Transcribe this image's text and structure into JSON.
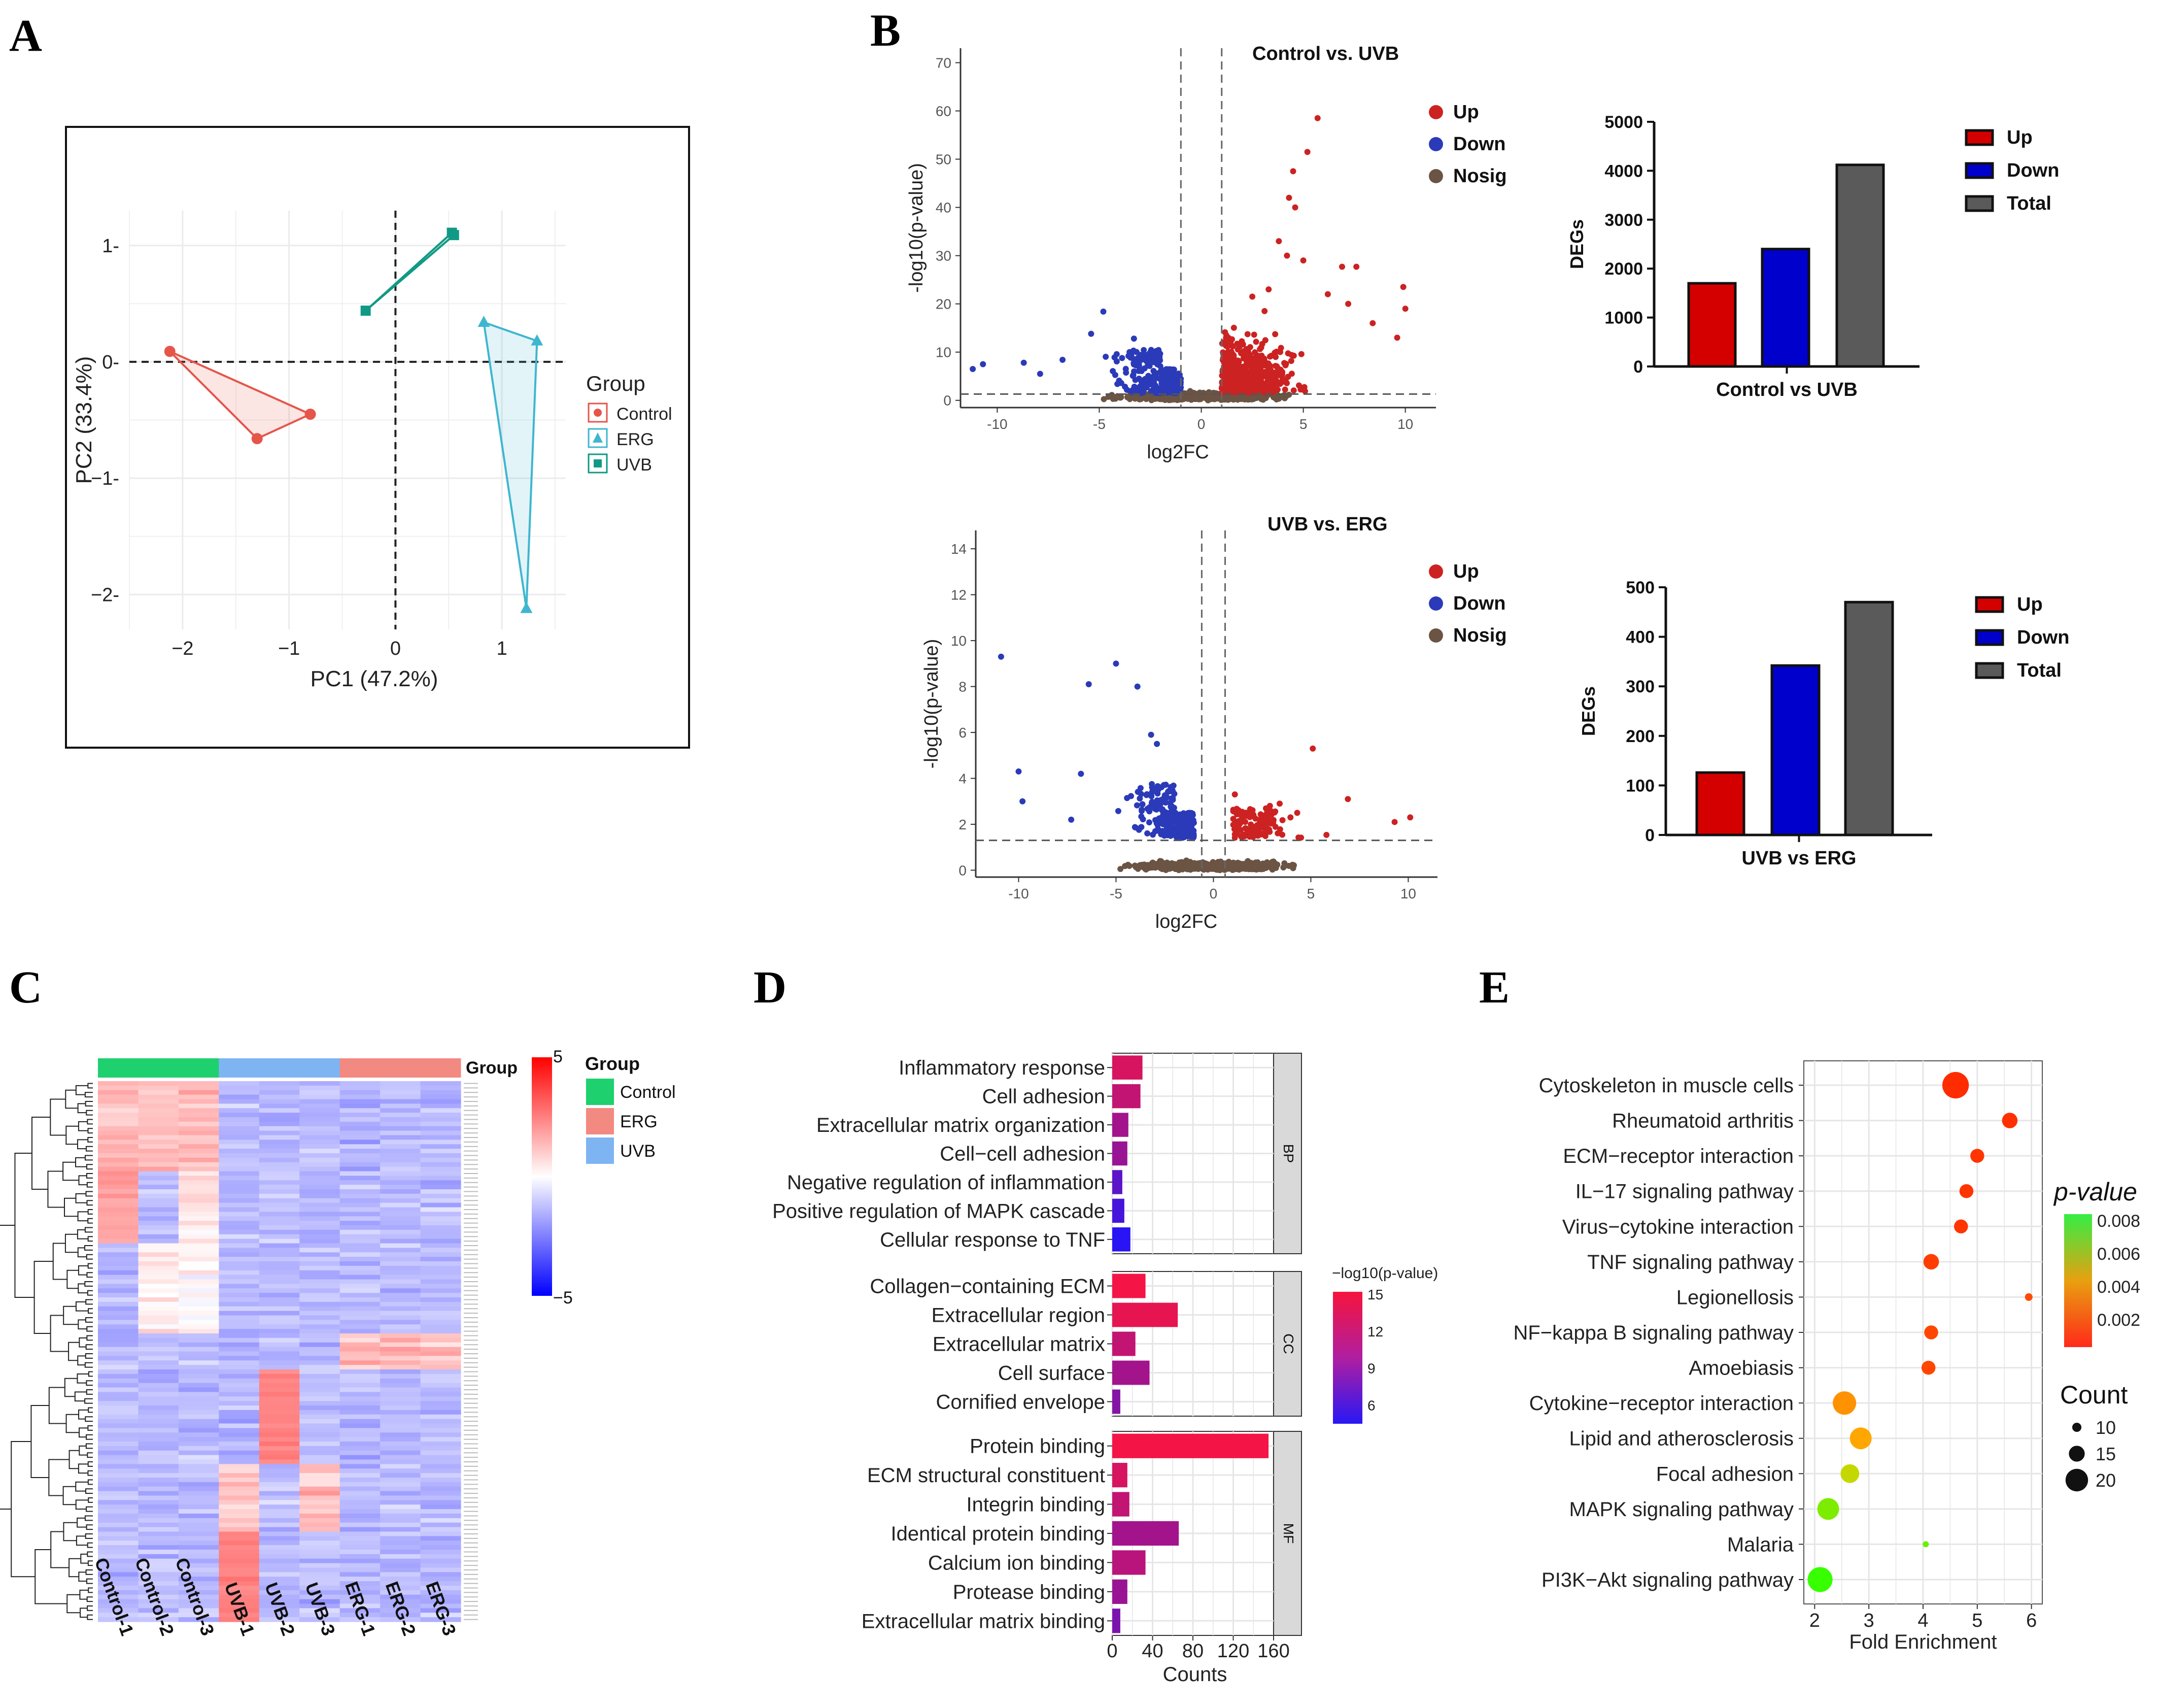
{
  "panel_labels": {
    "A": "A",
    "B": "B",
    "C": "C",
    "D": "D",
    "E": "E"
  },
  "colors": {
    "control": "#e6554a",
    "erg": "#3fb6cf",
    "uvb": "#109a86",
    "up": "#cc2222",
    "down": "#2a3ab8",
    "nosig": "#6b5444",
    "bar_up": "#d40000",
    "bar_down": "#0000cc",
    "bar_total": "#5a5a5a",
    "ctrl_band": "#1fd06f",
    "erg_band": "#f28a82",
    "uvb_band": "#7fb4f2"
  },
  "chart_data": [
    {
      "id": "A",
      "type": "scatter",
      "title": "",
      "xlabel": "PC1 (47.2%)",
      "ylabel": "PC2 (33.4%)",
      "xlim": [
        -2.5,
        1.6
      ],
      "ylim": [
        -2.3,
        1.3
      ],
      "xticks": [
        -2,
        -1,
        0,
        1
      ],
      "yticks": [
        1,
        0,
        -1,
        -2
      ],
      "xtick_labels": [
        "−2",
        "−1",
        "0",
        "1"
      ],
      "ytick_labels": [
        "1-",
        "0-",
        "−1-",
        "−2-"
      ],
      "legend_title": "Group",
      "series": [
        {
          "name": "Control",
          "marker": "circle",
          "points": [
            [
              -2.12,
              0.09
            ],
            [
              -1.3,
              -0.66
            ],
            [
              -0.8,
              -0.45
            ]
          ]
        },
        {
          "name": "ERG",
          "marker": "triangle",
          "points": [
            [
              0.83,
              0.34
            ],
            [
              1.33,
              0.18
            ],
            [
              1.23,
              -2.12
            ]
          ]
        },
        {
          "name": "UVB",
          "marker": "square",
          "points": [
            [
              -0.28,
              0.44
            ],
            [
              0.53,
              1.11
            ],
            [
              0.55,
              1.09
            ]
          ]
        }
      ]
    },
    {
      "id": "B1",
      "type": "scatter",
      "title": "Control vs. UVB",
      "xlabel": "log2FC",
      "ylabel": "-log10(p-value)",
      "xlim": [
        -11.8,
        11.5
      ],
      "ylim": [
        -1.5,
        73
      ],
      "xticks": [
        -10,
        -5,
        0,
        5,
        10
      ],
      "yticks": [
        0,
        10,
        20,
        30,
        40,
        50,
        60,
        70
      ],
      "vlines": [
        -1,
        1
      ],
      "hline": 1.3,
      "legend": [
        "Up",
        "Down",
        "Nosig"
      ],
      "highlight_points": {
        "up": [
          [
            5.7,
            58.5
          ],
          [
            5.2,
            51.5
          ],
          [
            4.5,
            47.5
          ],
          [
            4.6,
            40
          ],
          [
            4.3,
            42
          ],
          [
            3.8,
            33
          ],
          [
            4.2,
            30
          ],
          [
            5,
            29
          ],
          [
            6.9,
            27.7
          ],
          [
            7.6,
            27.7
          ],
          [
            9.9,
            23.5
          ],
          [
            10,
            19
          ],
          [
            6.2,
            22
          ],
          [
            7.2,
            20
          ],
          [
            8.4,
            16
          ],
          [
            9.6,
            13
          ],
          [
            3.3,
            23
          ],
          [
            2.5,
            21.5
          ],
          [
            3.1,
            18.5
          ]
        ],
        "down": [
          [
            -4.8,
            18.4
          ],
          [
            -5.4,
            13.8
          ],
          [
            -10.7,
            7.5
          ],
          [
            -11.2,
            6.5
          ],
          [
            -8.7,
            7.8
          ],
          [
            -3.3,
            12.8
          ],
          [
            -6.8,
            8.4
          ],
          [
            -7.9,
            5.5
          ]
        ]
      }
    },
    {
      "id": "B2",
      "type": "bar",
      "title": "",
      "categories": [
        "Control vs UVB"
      ],
      "ylabel": "DEGs",
      "ylim": [
        0,
        5000
      ],
      "yticks": [
        0,
        1000,
        2000,
        3000,
        4000,
        5000
      ],
      "series": [
        {
          "name": "Up",
          "values": [
            1700
          ]
        },
        {
          "name": "Down",
          "values": [
            2400
          ]
        },
        {
          "name": "Total",
          "values": [
            4120
          ]
        }
      ]
    },
    {
      "id": "B3",
      "type": "scatter",
      "title": "UVB vs. ERG",
      "xlabel": "log2FC",
      "ylabel": "-log10(p-value)",
      "xlim": [
        -12.2,
        11.5
      ],
      "ylim": [
        -0.3,
        14.8
      ],
      "xticks": [
        -10,
        -5,
        0,
        5,
        10
      ],
      "yticks": [
        0,
        2,
        4,
        6,
        8,
        10,
        12,
        14
      ],
      "vlines": [
        -0.6,
        0.6
      ],
      "hline": 1.3,
      "legend": [
        "Up",
        "Down",
        "Nosig"
      ],
      "highlight_points": {
        "up": [
          [
            5.1,
            5.3
          ],
          [
            6.9,
            3.1
          ],
          [
            9.3,
            2.1
          ],
          [
            10.1,
            2.3
          ],
          [
            4.3,
            2.5
          ],
          [
            2.9,
            2.8
          ],
          [
            1.1,
            3.3
          ],
          [
            3.4,
            2.9
          ]
        ],
        "down": [
          [
            -10.9,
            9.3
          ],
          [
            -5,
            9
          ],
          [
            -6.4,
            8.1
          ],
          [
            -3.9,
            8
          ],
          [
            -3.2,
            5.9
          ],
          [
            -2.9,
            5.5
          ],
          [
            -10,
            4.3
          ],
          [
            -6.8,
            4.2
          ],
          [
            -9.8,
            3
          ],
          [
            -7.3,
            2.2
          ]
        ]
      }
    },
    {
      "id": "B4",
      "type": "bar",
      "title": "",
      "categories": [
        "UVB vs ERG"
      ],
      "ylabel": "DEGs",
      "ylim": [
        0,
        500
      ],
      "yticks": [
        0,
        100,
        200,
        300,
        400,
        500
      ],
      "series": [
        {
          "name": "Up",
          "values": [
            126
          ]
        },
        {
          "name": "Down",
          "values": [
            342
          ]
        },
        {
          "name": "Total",
          "values": [
            470
          ]
        }
      ]
    },
    {
      "id": "C",
      "type": "heatmap",
      "title": "",
      "columns": [
        "Control-1",
        "Control-2",
        "Control-3",
        "UVB-1",
        "UVB-2",
        "UVB-3",
        "ERG-1",
        "ERG-2",
        "ERG-3"
      ],
      "annotation_label": "Group",
      "legend_title": "Group",
      "groups": [
        {
          "name": "Control",
          "color": "#1fd06f"
        },
        {
          "name": "ERG",
          "color": "#f28a82"
        },
        {
          "name": "UVB",
          "color": "#7fb4f2"
        }
      ],
      "column_groups": [
        "Control",
        "Control",
        "Control",
        "UVB",
        "UVB",
        "UVB",
        "ERG",
        "ERG",
        "ERG"
      ],
      "scale_range": [
        -5,
        5
      ],
      "scale_labels": [
        "5",
        "−5"
      ],
      "rows": 120
    },
    {
      "id": "D",
      "type": "bar",
      "orientation": "horizontal",
      "title": "",
      "xlabel": "Counts",
      "xlim": [
        0,
        160
      ],
      "xticks": [
        0,
        40,
        80,
        120,
        160
      ],
      "colorbar_title": "−log10(p-value)",
      "colorbar_ticks": [
        "15",
        "12",
        "9",
        "6"
      ],
      "facets": [
        {
          "name": "BP",
          "terms": [
            "Inflammatory response",
            "Cell adhesion",
            "Extracellular matrix organization",
            "Cell−cell adhesion",
            "Negative regulation of inflammation",
            "Positive regulation of MAPK cascade",
            "Cellular response to TNF"
          ],
          "counts": [
            30,
            28,
            16,
            15,
            10,
            12,
            18
          ],
          "neglog10p": [
            13.5,
            12.5,
            11,
            10.5,
            7.5,
            6.5,
            5
          ]
        },
        {
          "name": "CC",
          "terms": [
            "Collagen−containing ECM",
            "Extracellular region",
            "Extracellular matrix",
            "Cell surface",
            "Cornified envelope"
          ],
          "counts": [
            33,
            65,
            23,
            37,
            8
          ],
          "neglog10p": [
            15,
            14.3,
            12.5,
            11,
            9.5
          ]
        },
        {
          "name": "MF",
          "terms": [
            "Protein binding",
            "ECM structural constituent",
            "Integrin binding",
            "Identical protein binding",
            "Calcium ion binding",
            "Protease binding",
            "Extracellular matrix binding"
          ],
          "counts": [
            155,
            15,
            17,
            66,
            33,
            15,
            8
          ],
          "neglog10p": [
            15,
            13.5,
            12.5,
            11,
            12,
            10.5,
            9
          ]
        }
      ]
    },
    {
      "id": "E",
      "type": "scatter",
      "subtype": "bubble",
      "title": "",
      "xlabel": "Fold Enrichment",
      "xlim": [
        1.8,
        6.2
      ],
      "xticks": [
        2,
        3,
        4,
        5,
        6
      ],
      "color_legend_title": "p-value",
      "color_ticks": [
        "0.008",
        "0.006",
        "0.004",
        "0.002"
      ],
      "size_legend_title": "Count",
      "size_ticks": [
        "10",
        "15",
        "20"
      ],
      "pathways": [
        {
          "name": "Cytoskeleton in muscle cells",
          "fold": 4.6,
          "count": 20,
          "p": 0.0001
        },
        {
          "name": "Rheumatoid arthritis",
          "fold": 5.6,
          "count": 13,
          "p": 0.0002
        },
        {
          "name": "ECM−receptor interaction",
          "fold": 5.0,
          "count": 12,
          "p": 0.0003
        },
        {
          "name": "IL−17 signaling pathway",
          "fold": 4.8,
          "count": 12,
          "p": 0.0003
        },
        {
          "name": "Virus−cytokine interaction",
          "fold": 4.7,
          "count": 12,
          "p": 0.0003
        },
        {
          "name": "TNF signaling pathway",
          "fold": 4.15,
          "count": 13,
          "p": 0.0005
        },
        {
          "name": "Legionellosis",
          "fold": 5.95,
          "count": 8,
          "p": 0.0008
        },
        {
          "name": "NF−kappa B signaling pathway",
          "fold": 4.15,
          "count": 12,
          "p": 0.0007
        },
        {
          "name": "Amoebiasis",
          "fold": 4.1,
          "count": 12,
          "p": 0.0007
        },
        {
          "name": "Cytokine−receptor interaction",
          "fold": 2.55,
          "count": 18,
          "p": 0.0025
        },
        {
          "name": "Lipid and atherosclerosis",
          "fold": 2.85,
          "count": 17,
          "p": 0.003
        },
        {
          "name": "Focal adhesion",
          "fold": 2.65,
          "count": 15,
          "p": 0.0055
        },
        {
          "name": "MAPK signaling pathway",
          "fold": 2.25,
          "count": 17,
          "p": 0.007
        },
        {
          "name": "Malaria",
          "fold": 4.05,
          "count": 7,
          "p": 0.0075
        },
        {
          "name": "PI3K−Akt signaling pathway",
          "fold": 2.1,
          "count": 19,
          "p": 0.0085
        }
      ]
    }
  ]
}
